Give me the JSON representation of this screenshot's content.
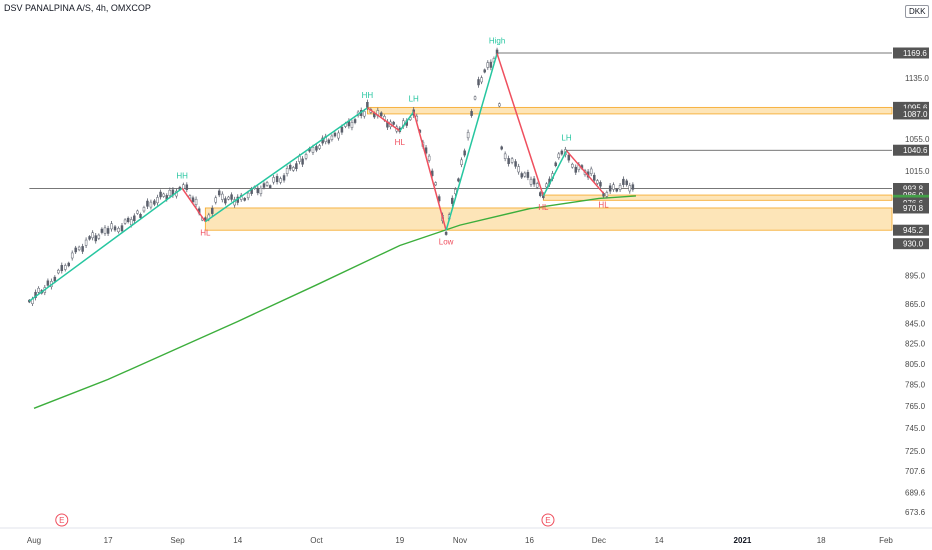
{
  "header": {
    "title": "DSV PANALPINA A/S, 4h, OMXCOP",
    "currency": "DKK"
  },
  "colors": {
    "background": "#ffffff",
    "bull_leg": "#26c6a0",
    "bear_leg": "#ef4f5e",
    "ma_line": "#3cae3c",
    "zone_fill": "#fde5b8",
    "zone_border": "#f5a623",
    "level_line": "#4a4a4a",
    "axis_text": "#4a4a4a",
    "price_tag": "#555555",
    "current_tag": "#43a047"
  },
  "chart_data": {
    "type": "line",
    "title": "DSV PANALPINA A/S, 4h, OMXCOP",
    "x_axis": {
      "labels": [
        {
          "text": "Aug",
          "date": "2020-08-01"
        },
        {
          "text": "17",
          "date": "2020-08-17"
        },
        {
          "text": "Sep",
          "date": "2020-09-01"
        },
        {
          "text": "14",
          "date": "2020-09-14"
        },
        {
          "text": "Oct",
          "date": "2020-10-01"
        },
        {
          "text": "19",
          "date": "2020-10-19"
        },
        {
          "text": "Nov",
          "date": "2020-11-01"
        },
        {
          "text": "16",
          "date": "2020-11-16"
        },
        {
          "text": "Dec",
          "date": "2020-12-01"
        },
        {
          "text": "14",
          "date": "2020-12-14"
        },
        {
          "text": "2021",
          "date": "2021-01-01"
        },
        {
          "text": "18",
          "date": "2021-01-18"
        },
        {
          "text": "Feb",
          "date": "2021-02-01"
        }
      ]
    },
    "y_axis": {
      "scale": "log",
      "ticks": [
        673.6,
        689.6,
        707.6,
        725.0,
        745.0,
        765.0,
        785.0,
        805.0,
        825.0,
        845.0,
        865.0,
        895.0,
        1015.0,
        1055.0,
        1135.0
      ]
    },
    "series": [
      {
        "type": "line",
        "color": "#3cae3c",
        "values": [
          {
            "x": "2020-08-01",
            "y": 763
          },
          {
            "x": "2020-08-17",
            "y": 790
          },
          {
            "x": "2020-09-01",
            "y": 820
          },
          {
            "x": "2020-09-14",
            "y": 847
          },
          {
            "x": "2020-10-01",
            "y": 885
          },
          {
            "x": "2020-10-19",
            "y": 928
          },
          {
            "x": "2020-11-01",
            "y": 951
          },
          {
            "x": "2020-11-16",
            "y": 970
          },
          {
            "x": "2020-12-01",
            "y": 982
          },
          {
            "x": "2020-12-09",
            "y": 985
          }
        ]
      },
      {
        "type": "line",
        "color": "#5a5f6b",
        "values": [
          {
            "x": "2020-07-31",
            "y": 868
          },
          {
            "x": "2020-08-04",
            "y": 885
          },
          {
            "x": "2020-08-07",
            "y": 900
          },
          {
            "x": "2020-08-10",
            "y": 920
          },
          {
            "x": "2020-08-13",
            "y": 935
          },
          {
            "x": "2020-08-17",
            "y": 945
          },
          {
            "x": "2020-08-20",
            "y": 950
          },
          {
            "x": "2020-08-24",
            "y": 965
          },
          {
            "x": "2020-08-27",
            "y": 980
          },
          {
            "x": "2020-08-31",
            "y": 990
          },
          {
            "x": "2020-09-03",
            "y": 994
          },
          {
            "x": "2020-09-07",
            "y": 955
          },
          {
            "x": "2020-09-10",
            "y": 985
          },
          {
            "x": "2020-09-14",
            "y": 978
          },
          {
            "x": "2020-09-17",
            "y": 990
          },
          {
            "x": "2020-09-21",
            "y": 998
          },
          {
            "x": "2020-09-24",
            "y": 1010
          },
          {
            "x": "2020-09-28",
            "y": 1030
          },
          {
            "x": "2020-10-01",
            "y": 1045
          },
          {
            "x": "2020-10-05",
            "y": 1060
          },
          {
            "x": "2020-10-08",
            "y": 1072
          },
          {
            "x": "2020-10-12",
            "y": 1095
          },
          {
            "x": "2020-10-15",
            "y": 1083
          },
          {
            "x": "2020-10-19",
            "y": 1065
          },
          {
            "x": "2020-10-22",
            "y": 1090
          },
          {
            "x": "2020-10-26",
            "y": 1015
          },
          {
            "x": "2020-10-29",
            "y": 945
          },
          {
            "x": "2020-11-02",
            "y": 1040
          },
          {
            "x": "2020-11-05",
            "y": 1130
          },
          {
            "x": "2020-11-09",
            "y": 1169
          },
          {
            "x": "2020-11-10",
            "y": 1040
          },
          {
            "x": "2020-11-13",
            "y": 1020
          },
          {
            "x": "2020-11-17",
            "y": 1000
          },
          {
            "x": "2020-11-19",
            "y": 985
          },
          {
            "x": "2020-11-23",
            "y": 1040
          },
          {
            "x": "2020-11-26",
            "y": 1020
          },
          {
            "x": "2020-11-30",
            "y": 1010
          },
          {
            "x": "2020-12-02",
            "y": 988
          },
          {
            "x": "2020-12-07",
            "y": 1000
          },
          {
            "x": "2020-12-09",
            "y": 993
          }
        ]
      }
    ],
    "swing_legs": [
      {
        "from": {
          "x": "2020-07-31",
          "y": 868
        },
        "to": {
          "x": "2020-09-02",
          "y": 994
        },
        "color": "bull"
      },
      {
        "from": {
          "x": "2020-09-02",
          "y": 994
        },
        "to": {
          "x": "2020-09-07",
          "y": 955
        },
        "color": "bear"
      },
      {
        "from": {
          "x": "2020-09-07",
          "y": 955
        },
        "to": {
          "x": "2020-10-12",
          "y": 1095
        },
        "color": "bull"
      },
      {
        "from": {
          "x": "2020-10-12",
          "y": 1095
        },
        "to": {
          "x": "2020-10-19",
          "y": 1065
        },
        "color": "bear"
      },
      {
        "from": {
          "x": "2020-10-19",
          "y": 1065
        },
        "to": {
          "x": "2020-10-22",
          "y": 1090
        },
        "color": "bull"
      },
      {
        "from": {
          "x": "2020-10-22",
          "y": 1090
        },
        "to": {
          "x": "2020-10-29",
          "y": 945
        },
        "color": "bear"
      },
      {
        "from": {
          "x": "2020-10-29",
          "y": 945
        },
        "to": {
          "x": "2020-11-09",
          "y": 1169
        },
        "color": "bull"
      },
      {
        "from": {
          "x": "2020-11-09",
          "y": 1169
        },
        "to": {
          "x": "2020-11-19",
          "y": 985
        },
        "color": "bear"
      },
      {
        "from": {
          "x": "2020-11-19",
          "y": 985
        },
        "to": {
          "x": "2020-11-24",
          "y": 1040
        },
        "color": "bull"
      },
      {
        "from": {
          "x": "2020-11-24",
          "y": 1040
        },
        "to": {
          "x": "2020-12-02",
          "y": 988
        },
        "color": "bear"
      }
    ],
    "swing_labels": [
      {
        "text": "HH",
        "x": "2020-09-02",
        "y": 994,
        "kind": "high"
      },
      {
        "text": "HL",
        "x": "2020-09-07",
        "y": 955,
        "kind": "low"
      },
      {
        "text": "HH",
        "x": "2020-10-12",
        "y": 1095,
        "kind": "high"
      },
      {
        "text": "LH",
        "x": "2020-10-22",
        "y": 1090,
        "kind": "high"
      },
      {
        "text": "HL",
        "x": "2020-10-19",
        "y": 1065,
        "kind": "low"
      },
      {
        "text": "Low",
        "x": "2020-10-29",
        "y": 945,
        "kind": "low"
      },
      {
        "text": "High",
        "x": "2020-11-09",
        "y": 1169,
        "kind": "high"
      },
      {
        "text": "LH",
        "x": "2020-11-24",
        "y": 1040,
        "kind": "high"
      },
      {
        "text": "HL",
        "x": "2020-11-19",
        "y": 985,
        "kind": "low"
      },
      {
        "text": "HL",
        "x": "2020-12-02",
        "y": 988,
        "kind": "low"
      }
    ],
    "zones": [
      {
        "top": 1095.6,
        "bottom": 1087.0,
        "x_start": "2020-10-12"
      },
      {
        "top": 986.0,
        "bottom": 979.8,
        "x_start": "2020-11-19"
      },
      {
        "top": 970.8,
        "bottom": 945.2,
        "x_start": "2020-09-07"
      }
    ],
    "levels": [
      {
        "y": 1169.6,
        "x_start": "2020-11-09"
      },
      {
        "y": 1040.6,
        "x_start": "2020-11-24"
      },
      {
        "y": 993.8,
        "x_start": "2020-07-31"
      }
    ],
    "price_tags": [
      "1169.6",
      "1095.6",
      "1087.0",
      "1040.6",
      "993.8",
      "986.0",
      "979.8",
      "976.6",
      "970.8",
      "945.2",
      "930.0"
    ],
    "current_price": "979.8",
    "event_markers": [
      {
        "text": "E",
        "x": "2020-08-07"
      },
      {
        "text": "E",
        "x": "2020-11-20"
      }
    ]
  }
}
